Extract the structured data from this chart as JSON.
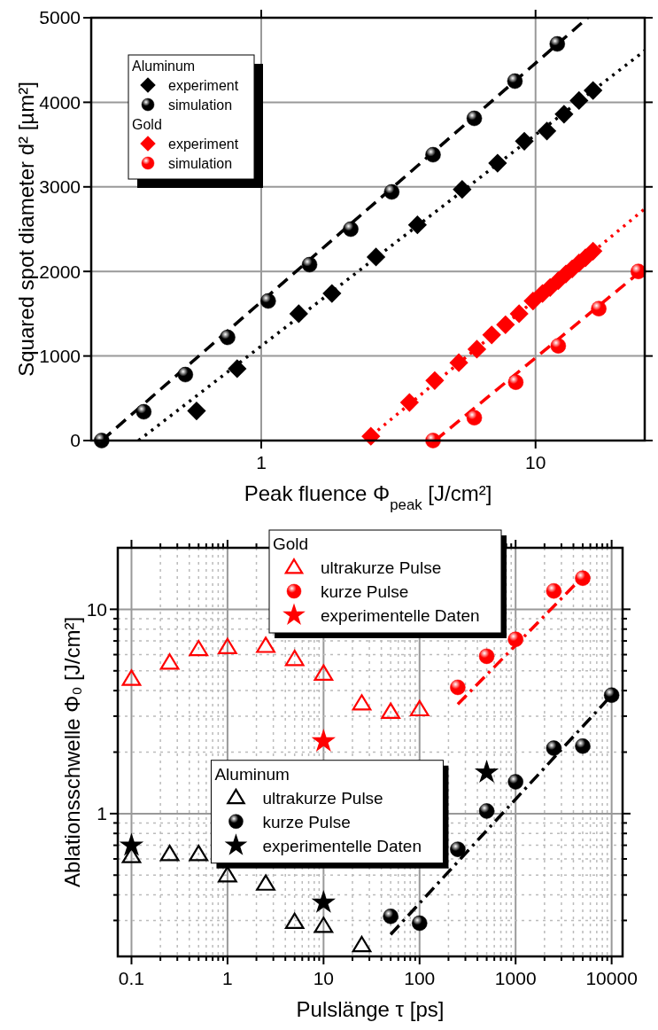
{
  "chart_data": [
    {
      "type": "scatter",
      "xlabel": "Peak fluence Φ$_{peak}$ [J/cm²]",
      "ylabel": "Squared spot diameter d² [µm²]",
      "log": "x",
      "xlim": [
        0.24,
        25
      ],
      "xticks": [
        1,
        10
      ],
      "ylim": [
        0,
        5000
      ],
      "yticks": [
        0,
        1000,
        2000,
        3000,
        4000,
        5000
      ],
      "grid": true,
      "legend": "top left",
      "annotations": [
        "Aluminum",
        "Gold"
      ],
      "series": [
        {
          "name": "experiment",
          "type": "scatter",
          "marker": "diamond",
          "color": "#000000",
          "x": [
            0.581,
            0.817,
            1.37,
            1.81,
            2.62,
            3.71,
            5.4,
            7.27,
            9.1,
            11.0,
            12.7,
            14.4,
            16.2
          ],
          "values": [
            350,
            850,
            1500,
            1740,
            2170,
            2550,
            2970,
            3280,
            3540,
            3660,
            3860,
            4020,
            4140
          ]
        },
        {
          "name": "simulation",
          "type": "scatter",
          "marker": "circle",
          "color": "#000000",
          "x": [
            0.262,
            0.373,
            0.529,
            0.754,
            1.06,
            1.5,
            2.12,
            2.99,
            4.23,
            5.98,
            8.41,
            12.0
          ],
          "values": [
            0,
            340,
            780,
            1220,
            1650,
            2080,
            2500,
            2940,
            3380,
            3810,
            4250,
            4690
          ]
        },
        {
          "name": "experiment",
          "type": "scatter",
          "marker": "diamond",
          "color": "#ff0000",
          "x": [
            2.51,
            3.47,
            4.29,
            5.25,
            6.11,
            6.92,
            7.77,
            8.71,
            9.79,
            10.6,
            11.3,
            12.1,
            12.9,
            13.6,
            14.4,
            15.2,
            16.2
          ],
          "values": [
            50,
            450,
            710,
            920,
            1080,
            1250,
            1370,
            1500,
            1650,
            1740,
            1810,
            1890,
            1970,
            2030,
            2100,
            2160,
            2240
          ]
        },
        {
          "name": "simulation",
          "type": "scatter",
          "marker": "circle",
          "color": "#ff0000",
          "x": [
            4.23,
            5.98,
            8.47,
            12.1,
            17.0,
            23.7
          ],
          "values": [
            0,
            270,
            690,
            1120,
            1560,
            2000
          ]
        },
        {
          "type": "line",
          "line_style": "dotted",
          "color": "#000000",
          "x": [
            0.357,
            25
          ],
          "values": [
            0,
            4610
          ]
        },
        {
          "type": "line",
          "line_style": "dashed",
          "color": "#000000",
          "x": [
            0.262,
            15.5
          ],
          "values": [
            0,
            5000
          ]
        },
        {
          "type": "line",
          "line_style": "dotted",
          "color": "#ff0000",
          "x": [
            2.4,
            25
          ],
          "values": [
            0,
            2740
          ]
        },
        {
          "type": "line",
          "line_style": "dashed",
          "color": "#ff0000",
          "x": [
            4.3,
            25
          ],
          "values": [
            0,
            2040
          ]
        }
      ]
    },
    {
      "type": "scatter",
      "xlabel": "Pulslänge τ [ps]",
      "ylabel": "Ablationsschwelle Φ₀ [J/cm²]",
      "log": "xy",
      "xlim": [
        0.072,
        13000
      ],
      "ylim": [
        0.2,
        20
      ],
      "grid": true,
      "legend": "top",
      "annotations": [
        "Gold",
        "Aluminum"
      ],
      "xticks": [
        0.1,
        {
          "value": 0.2,
          "label": null
        },
        {
          "value": 0.3,
          "label": null
        },
        {
          "value": 0.4,
          "label": null
        },
        {
          "value": 0.5,
          "label": null
        },
        {
          "value": 0.6,
          "label": null
        },
        {
          "value": 0.7,
          "label": null
        },
        {
          "value": 0.8,
          "label": null
        },
        {
          "value": 0.9,
          "label": null
        },
        1,
        {
          "value": 2,
          "label": null
        },
        {
          "value": 3,
          "label": null
        },
        {
          "value": 4,
          "label": null
        },
        {
          "value": 5,
          "label": null
        },
        {
          "value": 6,
          "label": null
        },
        {
          "value": 7,
          "label": null
        },
        {
          "value": 8,
          "label": null
        },
        {
          "value": 9,
          "label": null
        },
        10,
        {
          "value": 20,
          "label": null
        },
        {
          "value": 30,
          "label": null
        },
        {
          "value": 40,
          "label": null
        },
        {
          "value": 50,
          "label": null
        },
        {
          "value": 60,
          "label": null
        },
        {
          "value": 70,
          "label": null
        },
        {
          "value": 80,
          "label": null
        },
        {
          "value": 90,
          "label": null
        },
        100,
        {
          "value": 200,
          "label": null
        },
        {
          "value": 300,
          "label": null
        },
        {
          "value": 400,
          "label": null
        },
        {
          "value": 500,
          "label": null
        },
        {
          "value": 600,
          "label": null
        },
        {
          "value": 700,
          "label": null
        },
        {
          "value": 800,
          "label": null
        },
        {
          "value": 900,
          "label": null
        },
        1000,
        {
          "value": 2000,
          "label": null
        },
        {
          "value": 3000,
          "label": null
        },
        {
          "value": 4000,
          "label": null
        },
        {
          "value": 5000,
          "label": null
        },
        {
          "value": 6000,
          "label": null
        },
        {
          "value": 7000,
          "label": null
        },
        {
          "value": 8000,
          "label": null
        },
        {
          "value": 9000,
          "label": null
        },
        10000
      ],
      "yticks": [
        {
          "value": 0.3,
          "label": null
        },
        {
          "value": 0.4,
          "label": null
        },
        {
          "value": 0.5,
          "label": null
        },
        {
          "value": 0.6,
          "label": null
        },
        {
          "value": 0.7,
          "label": null
        },
        {
          "value": 0.8,
          "label": null
        },
        {
          "value": 0.9,
          "label": null
        },
        1,
        {
          "value": 2,
          "label": null
        },
        {
          "value": 3,
          "label": null
        },
        {
          "value": 4,
          "label": null
        },
        {
          "value": 5,
          "label": null
        },
        {
          "value": 6,
          "label": null
        },
        {
          "value": 7,
          "label": null
        },
        {
          "value": 8,
          "label": null
        },
        {
          "value": 9,
          "label": null
        },
        10
      ],
      "series": [
        {
          "name": "ultrakurze Pulse",
          "type": "scatter",
          "marker": "triangle",
          "color": "#ff0000",
          "x": [
            0.1,
            0.25,
            0.5,
            1,
            2.5,
            5,
            10,
            25,
            50,
            100
          ],
          "values": [
            4.57,
            5.48,
            6.38,
            6.53,
            6.62,
            5.71,
            4.84,
            3.46,
            3.15,
            3.24
          ]
        },
        {
          "name": "kurze Pulse",
          "type": "scatter",
          "marker": "circle",
          "color": "#ff0000",
          "x": [
            250,
            500,
            1000,
            2500,
            5000
          ],
          "values": [
            4.15,
            5.89,
            7.13,
            12.3,
            14.2
          ]
        },
        {
          "name": "experimentelle Daten",
          "type": "scatter",
          "marker": "star",
          "color": "#ff0000",
          "x": [
            10
          ],
          "values": [
            2.26
          ]
        },
        {
          "name": "ultrakurze Pulse",
          "type": "scatter",
          "marker": "triangle",
          "color": "#000000",
          "x": [
            0.1,
            0.25,
            0.5,
            1,
            2.5,
            5,
            10,
            25
          ],
          "values": [
            0.619,
            0.634,
            0.634,
            0.499,
            0.454,
            0.295,
            0.282,
            0.227
          ]
        },
        {
          "name": "kurze Pulse",
          "type": "scatter",
          "marker": "circle",
          "color": "#000000",
          "x": [
            50,
            100,
            250,
            500,
            1000,
            2500,
            5000,
            10000
          ],
          "values": [
            0.314,
            0.291,
            0.669,
            1.03,
            1.43,
            2.09,
            2.14,
            3.8
          ]
        },
        {
          "name": "experimentelle Daten",
          "type": "scatter",
          "marker": "star",
          "color": "#000000",
          "x": [
            0.1,
            10,
            500
          ],
          "values": [
            0.698,
            0.367,
            1.59
          ]
        },
        {
          "type": "line",
          "line_style": "dashdot",
          "color": "#ff0000",
          "x": [
            250,
            5500
          ],
          "values": [
            3.43,
            15.1
          ]
        },
        {
          "type": "line",
          "line_style": "dashdot",
          "color": "#000000",
          "x": [
            50,
            10000
          ],
          "values": [
            0.256,
            3.8
          ]
        }
      ]
    }
  ]
}
